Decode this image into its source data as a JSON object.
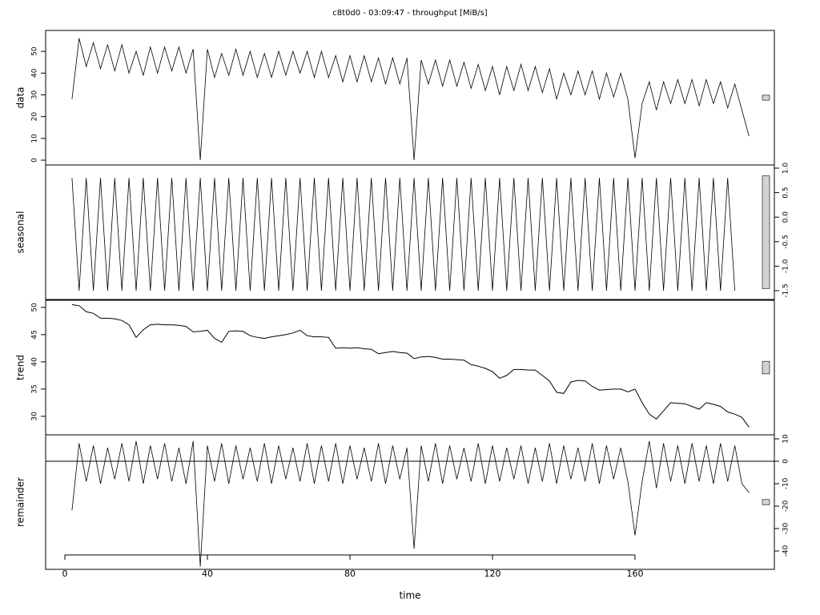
{
  "chart_data": {
    "type": "stl",
    "title": "c8t0d0 - 03:09:47 - throughput [MiB/s]",
    "xlabel": "time",
    "xlim": [
      -5.4,
      199.1
    ],
    "xticks": [
      0,
      40,
      80,
      120,
      160
    ],
    "x": [
      2,
      4,
      6,
      8,
      10,
      12,
      14,
      16,
      18,
      20,
      22,
      24,
      26,
      28,
      30,
      32,
      34,
      36,
      38,
      40,
      42,
      44,
      46,
      48,
      50,
      52,
      54,
      56,
      58,
      60,
      62,
      64,
      66,
      68,
      70,
      72,
      74,
      76,
      78,
      80,
      82,
      84,
      86,
      88,
      90,
      92,
      94,
      96,
      98,
      100,
      102,
      104,
      106,
      108,
      110,
      112,
      114,
      116,
      118,
      120,
      122,
      124,
      126,
      128,
      130,
      132,
      134,
      136,
      138,
      140,
      142,
      144,
      146,
      148,
      150,
      152,
      154,
      156,
      158,
      160,
      162,
      164,
      166,
      168,
      170,
      172,
      174,
      176,
      178,
      180,
      182,
      184,
      186,
      188,
      190,
      192
    ],
    "panels": [
      {
        "ylabel": "data",
        "tick_side": "left",
        "ylim": [
          -2.2,
          59.6
        ],
        "yticks": [
          0,
          10,
          20,
          30,
          40,
          50
        ],
        "values": [
          28,
          56,
          43,
          54,
          42,
          53,
          41,
          53,
          40,
          50,
          39,
          52,
          40,
          52,
          41,
          52,
          40,
          51,
          0,
          51,
          38,
          49,
          39,
          51,
          39,
          50,
          38,
          49,
          38,
          50,
          39,
          50,
          40,
          50,
          38,
          50,
          38,
          48,
          36,
          48,
          36,
          48,
          36,
          47,
          35,
          47,
          35,
          47,
          0,
          46,
          35,
          46,
          34,
          46,
          34,
          45,
          33,
          44,
          32,
          43,
          30,
          43,
          32,
          44,
          32,
          43,
          31,
          42,
          28,
          40,
          30,
          41,
          30,
          41,
          28,
          40,
          29,
          40,
          28,
          1,
          26,
          36,
          23,
          36,
          26,
          37,
          26,
          37,
          25,
          37,
          26,
          36,
          24,
          35,
          23,
          11
        ]
      },
      {
        "ylabel": "seasonal",
        "tick_side": "right",
        "ylim": [
          -1.68,
          1.065
        ],
        "yticks": [
          {
            "value": 1,
            "label": "1.0"
          },
          {
            "value": 0.5,
            "label": "0.5"
          },
          {
            "value": 0,
            "label": "0.0"
          },
          -0.5,
          {
            "value": -1,
            "label": "-1.0"
          },
          -1.5
        ],
        "values": [
          0.8,
          -1.5,
          0.8,
          -1.5,
          0.8,
          -1.5,
          0.8,
          -1.5,
          0.8,
          -1.5,
          0.8,
          -1.5,
          0.8,
          -1.5,
          0.8,
          -1.5,
          0.8,
          -1.5,
          0.8,
          -1.5,
          0.8,
          -1.5,
          0.8,
          -1.5,
          0.8,
          -1.5,
          0.8,
          -1.5,
          0.8,
          -1.5,
          0.8,
          -1.5,
          0.8,
          -1.5,
          0.8,
          -1.5,
          0.8,
          -1.5,
          0.8,
          -1.5,
          0.8,
          -1.5,
          0.8,
          -1.5,
          0.8,
          -1.5,
          0.8,
          -1.5,
          0.8,
          -1.5,
          0.8,
          -1.5,
          0.8,
          -1.5,
          0.8,
          -1.5,
          0.8,
          -1.5,
          0.8,
          -1.5,
          0.8,
          -1.5,
          0.8,
          -1.5,
          0.8,
          -1.5,
          0.8,
          -1.5,
          0.8,
          -1.5,
          0.8,
          -1.5,
          0.8,
          -1.5,
          0.8,
          -1.5,
          0.8,
          -1.5,
          0.8,
          -1.5,
          0.8,
          -1.5,
          0.8,
          -1.5,
          0.8,
          -1.5,
          0.8,
          -1.5,
          0.8,
          -1.5,
          0.8,
          -1.5,
          0.8,
          -1.5
        ]
      },
      {
        "ylabel": "trend",
        "tick_side": "left",
        "ylim": [
          26.6,
          51.3
        ],
        "yticks": [
          30,
          35,
          40,
          45,
          50
        ],
        "values": [
          50.5,
          50.3,
          49.2,
          48.9,
          48.0,
          48.0,
          47.9,
          47.6,
          46.8,
          44.5,
          45.9,
          46.8,
          46.9,
          46.8,
          46.8,
          46.7,
          46.5,
          45.5,
          45.6,
          45.8,
          44.3,
          43.6,
          45.6,
          45.7,
          45.6,
          44.8,
          44.5,
          44.3,
          44.6,
          44.8,
          45.0,
          45.3,
          45.8,
          44.8,
          44.6,
          44.6,
          44.5,
          42.5,
          42.6,
          42.5,
          42.6,
          42.4,
          42.3,
          41.5,
          41.7,
          41.9,
          41.7,
          41.6,
          40.6,
          40.9,
          41.0,
          40.8,
          40.5,
          40.5,
          40.4,
          40.3,
          39.5,
          39.2,
          38.8,
          38.2,
          37.0,
          37.5,
          38.6,
          38.6,
          38.5,
          38.5,
          37.5,
          36.5,
          34.4,
          34.2,
          36.3,
          36.6,
          36.5,
          35.5,
          34.8,
          34.9,
          35.0,
          35.0,
          34.5,
          35.0,
          32.5,
          30.4,
          29.5,
          31.0,
          32.5,
          32.4,
          32.3,
          31.8,
          31.3,
          32.5,
          32.2,
          31.8,
          30.8,
          30.4,
          29.8,
          28.0
        ]
      },
      {
        "ylabel": "remainder",
        "tick_side": "right",
        "ylim": [
          -48.2,
          11.8
        ],
        "yticks": [
          10,
          0,
          -10,
          -20,
          -30,
          -40
        ],
        "values": [
          -22,
          8,
          -9,
          7,
          -10,
          6,
          -8,
          8,
          -9,
          9,
          -10,
          7,
          -8,
          8,
          -9,
          6,
          -10,
          9,
          -47,
          7,
          -9,
          8,
          -10,
          7,
          -8,
          6,
          -9,
          8,
          -10,
          7,
          -8,
          6,
          -9,
          8,
          -10,
          7,
          -9,
          8,
          -10,
          7,
          -8,
          6,
          -9,
          8,
          -10,
          7,
          -8,
          6,
          -39,
          7,
          -9,
          8,
          -10,
          7,
          -8,
          6,
          -9,
          8,
          -10,
          7,
          -9,
          6,
          -8,
          7,
          -10,
          6,
          -9,
          8,
          -10,
          7,
          -8,
          6,
          -9,
          8,
          -10,
          7,
          -8,
          6,
          -9,
          -33,
          -9,
          9,
          -12,
          8,
          -9,
          7,
          -10,
          8,
          -9,
          7,
          -10,
          8,
          -9,
          7,
          -10,
          -14
        ]
      }
    ]
  }
}
